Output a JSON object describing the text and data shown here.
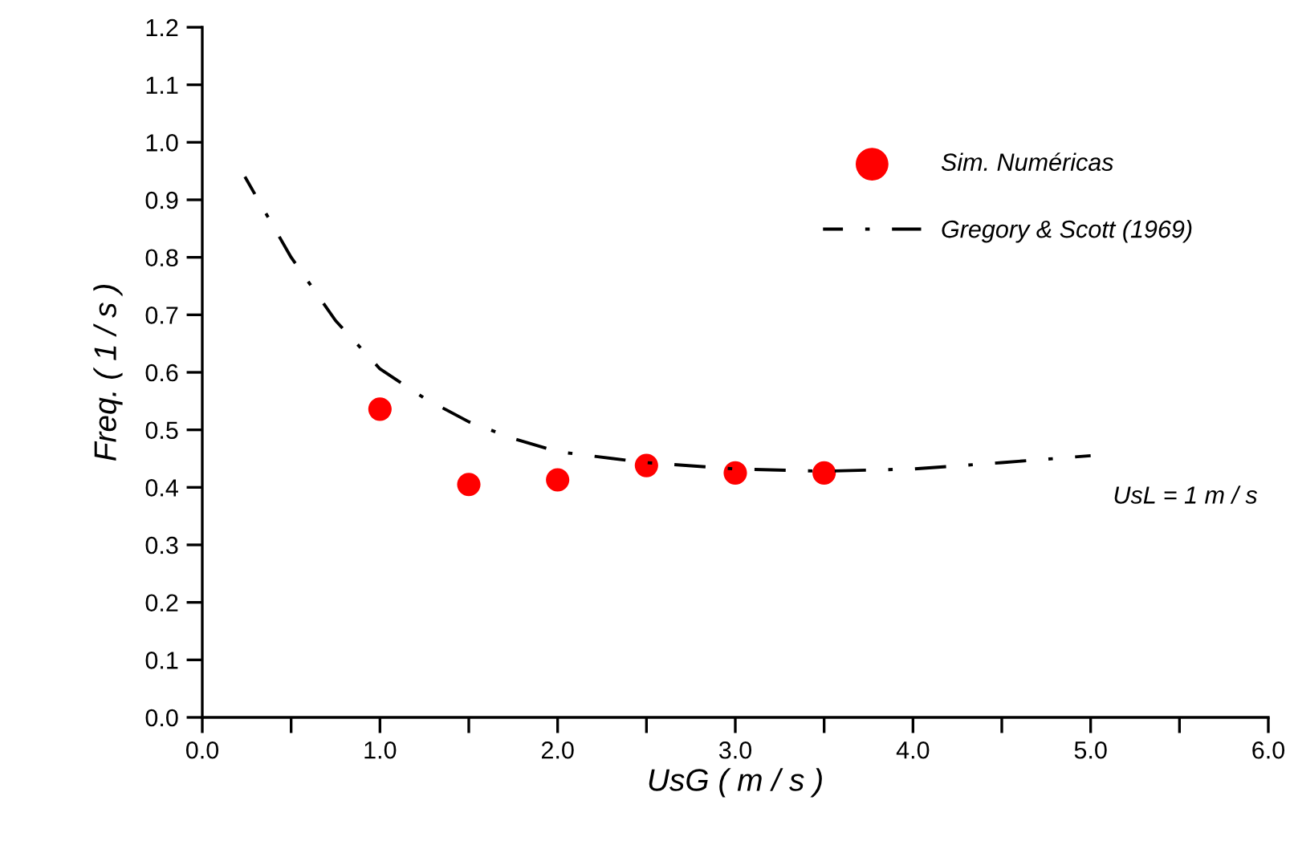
{
  "chart_data": {
    "type": "scatter",
    "xlabel": "UsG ( m / s )",
    "ylabel": "Freq. ( 1 / s )",
    "xlim": [
      0,
      6
    ],
    "ylim": [
      0,
      1.2
    ],
    "xticks": [
      {
        "value": 0,
        "label": "0.0"
      },
      {
        "value": 0.5,
        "label": null
      },
      {
        "value": 1,
        "label": "1.0"
      },
      {
        "value": 1.5,
        "label": null
      },
      {
        "value": 2,
        "label": "2.0"
      },
      {
        "value": 2.5,
        "label": null
      },
      {
        "value": 3,
        "label": "3.0"
      },
      {
        "value": 3.5,
        "label": null
      },
      {
        "value": 4,
        "label": "4.0"
      },
      {
        "value": 4.5,
        "label": null
      },
      {
        "value": 5,
        "label": "5.0"
      },
      {
        "value": 5.5,
        "label": null
      },
      {
        "value": 6,
        "label": "6.0"
      }
    ],
    "yticks": [
      {
        "value": 0,
        "label": "0.0"
      },
      {
        "value": 0.1,
        "label": "0.1"
      },
      {
        "value": 0.2,
        "label": "0.2"
      },
      {
        "value": 0.3,
        "label": "0.3"
      },
      {
        "value": 0.4,
        "label": "0.4"
      },
      {
        "value": 0.5,
        "label": "0.5"
      },
      {
        "value": 0.6,
        "label": "0.6"
      },
      {
        "value": 0.7,
        "label": "0.7"
      },
      {
        "value": 0.8,
        "label": "0.8"
      },
      {
        "value": 0.9,
        "label": "0.9"
      },
      {
        "value": 1.0,
        "label": "1.0"
      },
      {
        "value": 1.1,
        "label": "1.1"
      },
      {
        "value": 1.2,
        "label": "1.2"
      }
    ],
    "grid": false,
    "legend": "top right",
    "annotations": [
      "UsL = 1 m / s"
    ],
    "series": [
      {
        "name": "Sim. Numéricas",
        "color": "#ff0000",
        "marker": "circle",
        "x": [
          1.0,
          1.5,
          2.0,
          2.5,
          3.0,
          3.5
        ],
        "values": [
          0.536,
          0.405,
          0.413,
          0.438,
          0.425,
          0.425
        ]
      },
      {
        "name": "Gregory & Scott (1969)",
        "type": "line",
        "color": "#000000",
        "marker": "none",
        "line_style": "dashdot",
        "x": [
          0.24,
          0.5,
          0.75,
          1.0,
          1.25,
          1.5,
          1.75,
          2.0,
          2.5,
          3.0,
          3.5,
          4.0,
          4.5,
          5.0
        ],
        "values": [
          0.94,
          0.8,
          0.69,
          0.606,
          0.555,
          0.514,
          0.485,
          0.462,
          0.443,
          0.432,
          0.428,
          0.432,
          0.443,
          0.455
        ]
      }
    ]
  }
}
